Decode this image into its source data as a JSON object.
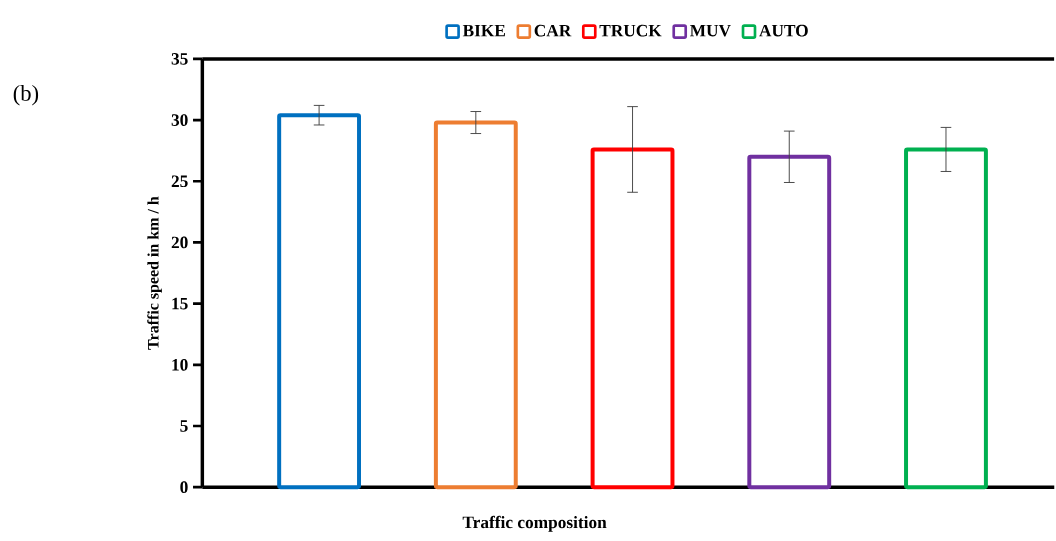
{
  "chart_data": {
    "type": "bar",
    "xlabel": "Traffic composition",
    "ylabel": "Traffic speed in km / h",
    "annotations": [
      "(b)"
    ],
    "categories": [
      null,
      null,
      null,
      null,
      null
    ],
    "series": [
      {
        "name": "BIKE",
        "color": "#0070c0",
        "values": [
          30.4,
          null,
          null,
          null,
          null
        ],
        "errors": [
          0.8,
          null,
          null,
          null,
          null
        ]
      },
      {
        "name": "CAR",
        "color": "#ed7d31",
        "values": [
          null,
          29.8,
          null,
          null,
          null
        ],
        "errors": [
          null,
          0.9,
          null,
          null,
          null
        ]
      },
      {
        "name": "TRUCK",
        "color": "#ff0000",
        "values": [
          null,
          null,
          27.6,
          null,
          null
        ],
        "errors": [
          null,
          null,
          3.5,
          null,
          null
        ]
      },
      {
        "name": "MUV",
        "color": "#7030a0",
        "values": [
          null,
          null,
          null,
          27.0,
          null
        ],
        "errors": [
          null,
          null,
          null,
          2.1,
          null
        ]
      },
      {
        "name": "AUTO",
        "color": "#00b050",
        "values": [
          null,
          null,
          null,
          null,
          27.6
        ],
        "errors": [
          null,
          null,
          null,
          null,
          1.8
        ]
      }
    ],
    "ylim": [
      0,
      35
    ],
    "yticks": [
      0,
      5,
      10,
      15,
      20,
      25,
      30,
      35
    ],
    "grid": false,
    "legend": "top"
  }
}
